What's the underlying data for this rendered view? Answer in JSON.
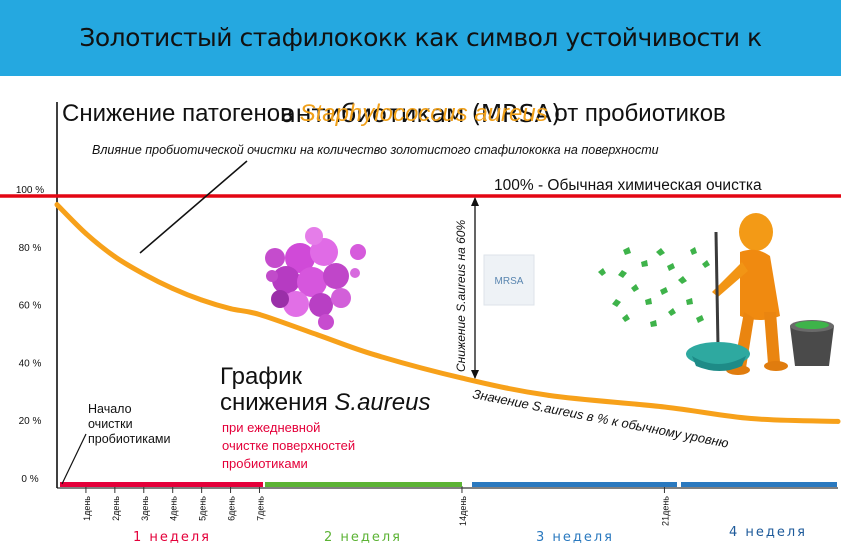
{
  "banner": {
    "title": "Золотистый стафилококк как символ устойчивости к антибиотикам (MRSA)"
  },
  "colors": {
    "banner": "#25a8e0",
    "curve": "#f7a11a",
    "reference": "#e30613",
    "week1": "#e4003a",
    "week2": "#5cb335",
    "week34": "#2a79bf"
  },
  "chart_data": {
    "type": "line",
    "title_prefix": "Снижение патогенов ",
    "title_species": "Staphylococcus aureus",
    "title_suffix": " от пробиотиков",
    "subtitle": "Влияние пробиотической очистки на количество золотистого стафилококка на поверхности",
    "reference_label": "100% - Обычная химическая очистка",
    "y_ticks": [
      "100 %",
      "80 %",
      "60 %",
      "40 %",
      "20 %",
      "0 %"
    ],
    "ylim": [
      0,
      100
    ],
    "x_ticks": [
      "1день",
      "2день",
      "3день",
      "4день",
      "5день",
      "6день",
      "7день",
      "14день",
      "21день"
    ],
    "x_tick_days": [
      1,
      2,
      3,
      4,
      5,
      6,
      7,
      14,
      21
    ],
    "xlim": [
      0,
      27
    ],
    "week_labels": [
      "1 неделя",
      "2 неделя",
      "3 неделя",
      "4 неделя"
    ],
    "series": [
      {
        "x": [
          0,
          1,
          2,
          3,
          4,
          5,
          6,
          7,
          9,
          11,
          14,
          17,
          21,
          24,
          27
        ],
        "values": [
          97,
          87,
          79,
          73,
          68,
          64,
          61,
          59,
          52,
          45,
          37,
          31,
          27,
          23,
          22
        ]
      }
    ],
    "reference_value": 100,
    "reduction_annotation": "Снижение S.aureus на 60%",
    "curve_annotation": "Значение S.aureus в % к обычному уровню",
    "graph_title_line1": "График",
    "graph_title_line2_prefix": "снижения ",
    "graph_title_line2_species": "S.aureus",
    "graph_subtitle_lines": [
      "при ежедневной",
      "очистке поверхностей",
      "пробиотиками"
    ],
    "start_label_lines": [
      "Начало",
      "очистки",
      "пробиотиками"
    ],
    "mrsa_label": "MRSA"
  }
}
